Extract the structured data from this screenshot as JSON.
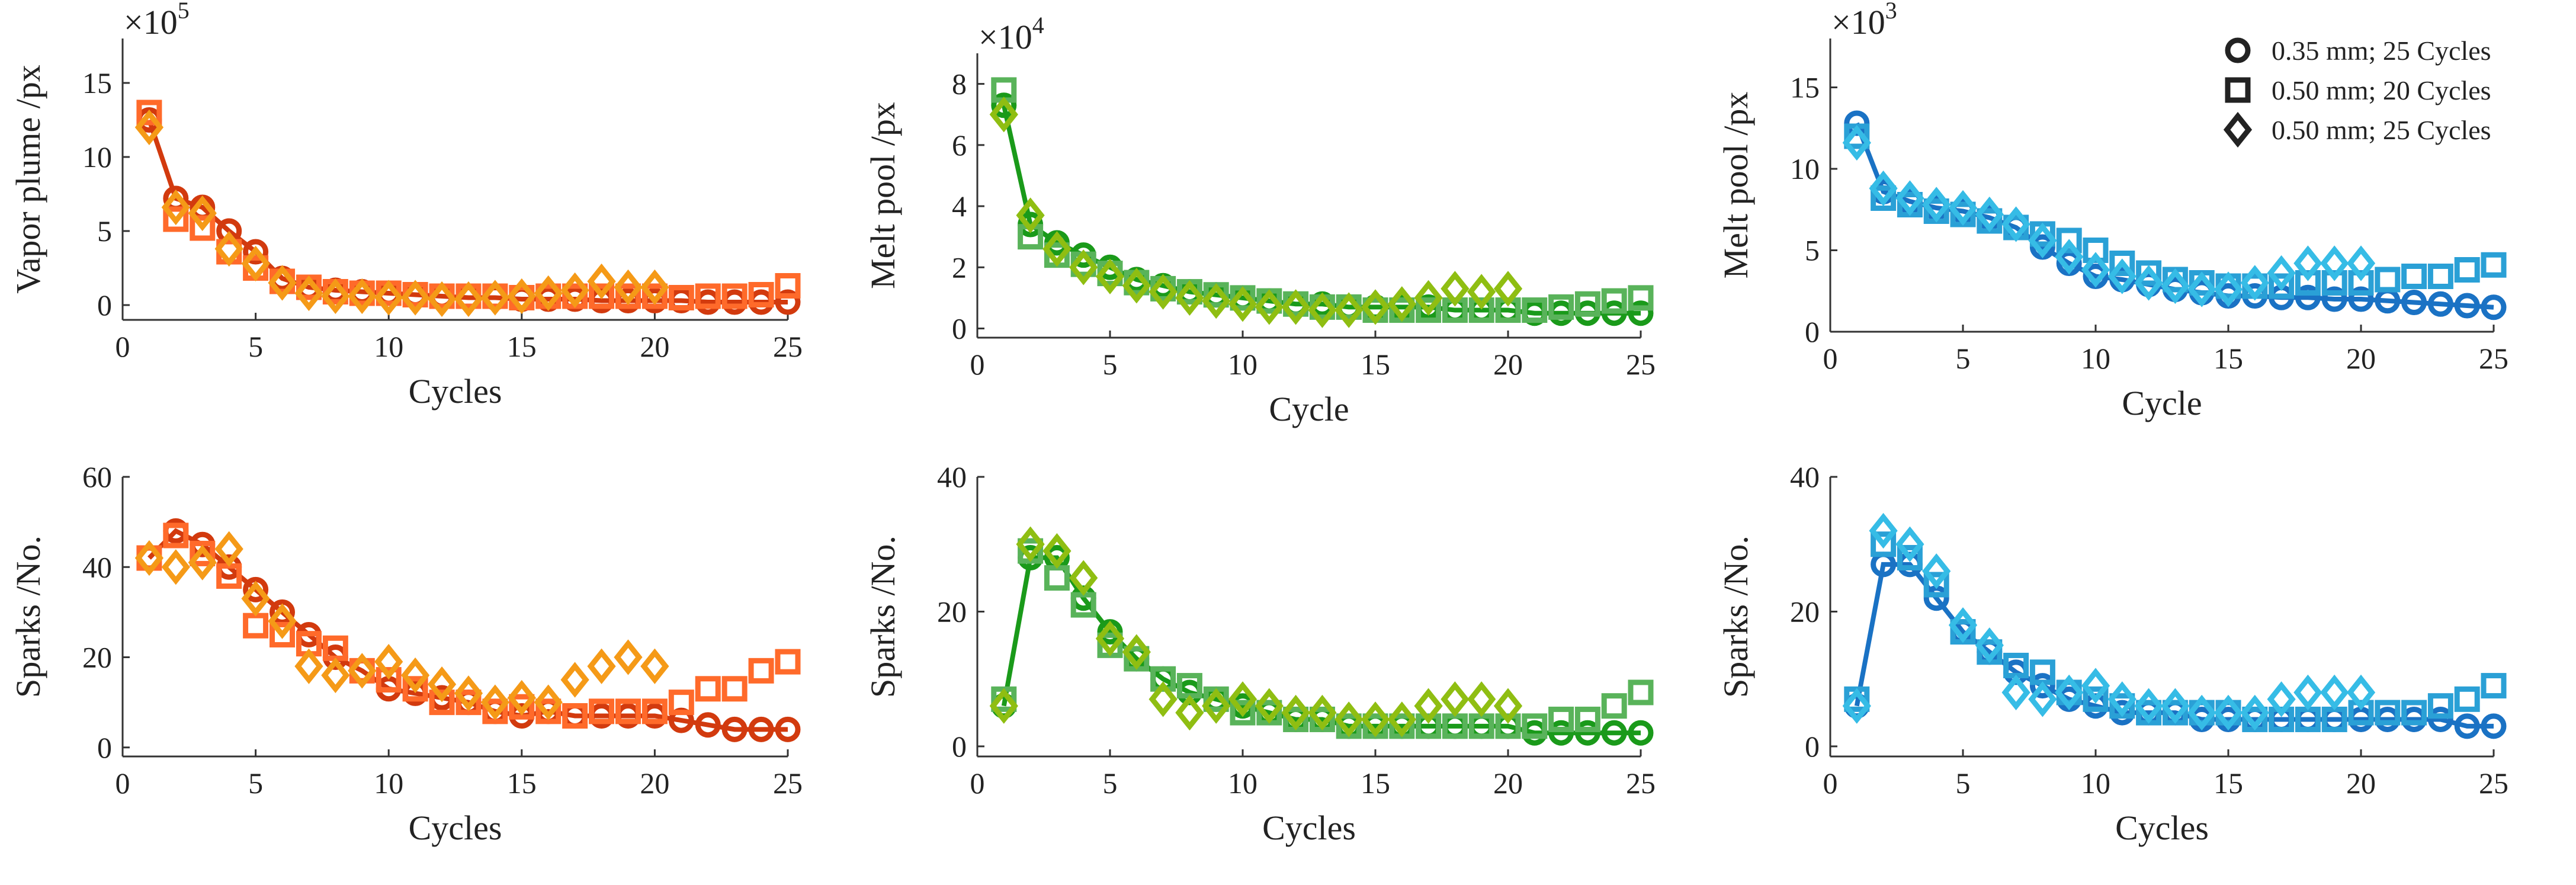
{
  "legend": {
    "items": [
      {
        "marker": "circle",
        "label": "0.35 mm; 25 Cycles"
      },
      {
        "marker": "square",
        "label": "0.50 mm; 20 Cycles"
      },
      {
        "marker": "diamond",
        "label": "0.50 mm; 25 Cycles"
      }
    ]
  },
  "chart_data": [
    {
      "type": "scatter",
      "id": "vapor",
      "xlabel": "Cycles",
      "ylabel": "Vapor plume /px",
      "multiplier_base": "×10",
      "multiplier_exp": "5",
      "xlim": [
        0,
        25
      ],
      "ylim": [
        -1,
        18
      ],
      "xticks": [
        0,
        5,
        10,
        15,
        20,
        25
      ],
      "yticks": [
        0,
        5,
        10,
        15
      ],
      "colors": [
        "#d23a0e",
        "#ff6a2a",
        "#f59a17"
      ],
      "series": [
        {
          "marker": "circle",
          "x": [
            1,
            2,
            3,
            4,
            5,
            6,
            7,
            8,
            9,
            10,
            11,
            12,
            13,
            14,
            15,
            16,
            17,
            18,
            19,
            20,
            21,
            22,
            23,
            24,
            25
          ],
          "y": [
            12.5,
            7.2,
            6.6,
            5.0,
            3.6,
            1.8,
            1.2,
            1.0,
            0.9,
            0.8,
            0.7,
            0.6,
            0.5,
            0.5,
            0.4,
            0.4,
            0.4,
            0.3,
            0.3,
            0.3,
            0.3,
            0.2,
            0.2,
            0.2,
            0.2
          ]
        },
        {
          "marker": "square",
          "x": [
            1,
            2,
            3,
            4,
            5,
            6,
            7,
            8,
            9,
            10,
            11,
            12,
            13,
            14,
            15,
            16,
            17,
            18,
            19,
            20,
            21,
            22,
            23,
            24,
            25
          ],
          "y": [
            13.0,
            5.8,
            5.2,
            3.6,
            2.5,
            1.6,
            1.2,
            0.9,
            0.8,
            0.8,
            0.7,
            0.6,
            0.6,
            0.6,
            0.5,
            0.6,
            0.6,
            0.6,
            0.6,
            0.6,
            0.5,
            0.6,
            0.6,
            0.7,
            1.3
          ]
        },
        {
          "marker": "diamond",
          "x": [
            1,
            2,
            3,
            4,
            5,
            6,
            7,
            8,
            9,
            10,
            11,
            12,
            13,
            14,
            15,
            16,
            17,
            18,
            19,
            20
          ],
          "y": [
            12.0,
            6.6,
            6.2,
            3.8,
            2.8,
            1.5,
            0.8,
            0.6,
            0.6,
            0.5,
            0.5,
            0.4,
            0.4,
            0.5,
            0.6,
            0.8,
            1.0,
            1.6,
            1.2,
            1.2
          ]
        }
      ]
    },
    {
      "type": "scatter",
      "id": "melt-green",
      "xlabel": "Cycle",
      "ylabel": "Melt pool /px",
      "multiplier_base": "×10",
      "multiplier_exp": "4",
      "xlim": [
        0,
        25
      ],
      "ylim": [
        -0.3,
        9
      ],
      "xticks": [
        0,
        5,
        10,
        15,
        20,
        25
      ],
      "yticks": [
        0,
        2,
        4,
        6,
        8
      ],
      "colors": [
        "#1a9a1a",
        "#59b35a",
        "#8fbe12"
      ],
      "series": [
        {
          "marker": "circle",
          "x": [
            1,
            2,
            3,
            4,
            5,
            6,
            7,
            8,
            9,
            10,
            11,
            12,
            13,
            14,
            15,
            16,
            17,
            18,
            19,
            20,
            21,
            22,
            23,
            24,
            25
          ],
          "y": [
            7.3,
            3.4,
            2.8,
            2.4,
            2.0,
            1.6,
            1.4,
            1.2,
            1.1,
            1.0,
            0.9,
            0.8,
            0.8,
            0.7,
            0.7,
            0.7,
            0.7,
            0.6,
            0.6,
            0.6,
            0.5,
            0.5,
            0.5,
            0.5,
            0.5
          ]
        },
        {
          "marker": "square",
          "x": [
            1,
            2,
            3,
            4,
            5,
            6,
            7,
            8,
            9,
            10,
            11,
            12,
            13,
            14,
            15,
            16,
            17,
            18,
            19,
            20,
            21,
            22,
            23,
            24,
            25
          ],
          "y": [
            7.8,
            3.0,
            2.4,
            2.1,
            1.8,
            1.5,
            1.3,
            1.2,
            1.1,
            1.0,
            0.9,
            0.8,
            0.7,
            0.7,
            0.6,
            0.6,
            0.6,
            0.6,
            0.6,
            0.6,
            0.6,
            0.7,
            0.8,
            0.9,
            1.0
          ]
        },
        {
          "marker": "diamond",
          "x": [
            1,
            2,
            3,
            4,
            5,
            6,
            7,
            8,
            9,
            10,
            11,
            12,
            13,
            14,
            15,
            16,
            17,
            18,
            19,
            20
          ],
          "y": [
            7.0,
            3.7,
            2.6,
            2.0,
            1.7,
            1.4,
            1.2,
            1.0,
            0.9,
            0.8,
            0.7,
            0.7,
            0.6,
            0.6,
            0.7,
            0.8,
            1.0,
            1.3,
            1.2,
            1.3
          ]
        }
      ]
    },
    {
      "type": "scatter",
      "id": "melt-blue",
      "xlabel": "Cycle",
      "ylabel": "Melt pool /px",
      "multiplier_base": "×10",
      "multiplier_exp": "3",
      "xlim": [
        0,
        25
      ],
      "ylim": [
        0,
        18
      ],
      "xticks": [
        0,
        5,
        10,
        15,
        20,
        25
      ],
      "yticks": [
        0,
        5,
        10,
        15
      ],
      "colors": [
        "#1a72c4",
        "#2aa0d6",
        "#36bce6"
      ],
      "series": [
        {
          "marker": "circle",
          "x": [
            1,
            2,
            3,
            4,
            5,
            6,
            7,
            8,
            9,
            10,
            11,
            12,
            13,
            14,
            15,
            16,
            17,
            18,
            19,
            20,
            21,
            22,
            23,
            24,
            25
          ],
          "y": [
            12.8,
            8.6,
            8.0,
            7.6,
            7.4,
            7.0,
            6.4,
            5.2,
            4.2,
            3.4,
            3.2,
            2.9,
            2.6,
            2.4,
            2.2,
            2.2,
            2.1,
            2.1,
            2.0,
            2.0,
            1.9,
            1.8,
            1.7,
            1.6,
            1.5
          ]
        },
        {
          "marker": "square",
          "x": [
            1,
            2,
            3,
            4,
            5,
            6,
            7,
            8,
            9,
            10,
            11,
            12,
            13,
            14,
            15,
            16,
            17,
            18,
            19,
            20,
            21,
            22,
            23,
            24,
            25
          ],
          "y": [
            12.0,
            8.2,
            7.8,
            7.4,
            7.2,
            6.8,
            6.4,
            6.0,
            5.6,
            5.0,
            4.2,
            3.6,
            3.2,
            3.0,
            2.8,
            2.8,
            2.8,
            3.0,
            3.0,
            3.0,
            3.2,
            3.4,
            3.4,
            3.8,
            4.1
          ]
        },
        {
          "marker": "diamond",
          "x": [
            1,
            2,
            3,
            4,
            5,
            6,
            7,
            8,
            9,
            10,
            11,
            12,
            13,
            14,
            15,
            16,
            17,
            18,
            19,
            20
          ],
          "y": [
            11.6,
            8.8,
            8.2,
            7.8,
            7.6,
            7.2,
            6.6,
            5.6,
            4.6,
            3.8,
            3.4,
            3.0,
            2.8,
            2.6,
            2.6,
            3.0,
            3.6,
            4.2,
            4.2,
            4.2
          ]
        }
      ]
    },
    {
      "type": "scatter",
      "id": "sparks-red",
      "xlabel": "Cycles",
      "ylabel": "Sparks /No.",
      "xlim": [
        0,
        25
      ],
      "ylim": [
        -2,
        60
      ],
      "xticks": [
        0,
        5,
        10,
        15,
        20,
        25
      ],
      "yticks": [
        0,
        20,
        40,
        60
      ],
      "colors": [
        "#d23a0e",
        "#ff6a2a",
        "#f59a17"
      ],
      "series": [
        {
          "marker": "circle",
          "x": [
            1,
            2,
            3,
            4,
            5,
            6,
            7,
            8,
            9,
            10,
            11,
            12,
            13,
            14,
            15,
            16,
            17,
            18,
            19,
            20,
            21,
            22,
            23,
            24,
            25
          ],
          "y": [
            42,
            48,
            45,
            40,
            35,
            30,
            25,
            20,
            17,
            13,
            12,
            11,
            10,
            8,
            7,
            8,
            7,
            7,
            7,
            7,
            6,
            5,
            4,
            4,
            4
          ]
        },
        {
          "marker": "square",
          "x": [
            1,
            2,
            3,
            4,
            5,
            6,
            7,
            8,
            9,
            10,
            11,
            12,
            13,
            14,
            15,
            16,
            17,
            18,
            19,
            20,
            21,
            22,
            23,
            24,
            25
          ],
          "y": [
            42,
            47,
            43,
            38,
            27,
            25,
            23,
            22,
            17,
            15,
            13,
            10,
            10,
            8,
            9,
            8,
            7,
            8,
            8,
            8,
            10,
            13,
            13,
            17,
            19
          ]
        },
        {
          "marker": "diamond",
          "x": [
            1,
            2,
            3,
            4,
            5,
            6,
            7,
            8,
            9,
            10,
            11,
            12,
            13,
            14,
            15,
            16,
            17,
            18,
            19,
            20
          ],
          "y": [
            42,
            40,
            41,
            44,
            33,
            28,
            18,
            16,
            17,
            19,
            16,
            14,
            12,
            10,
            11,
            10,
            15,
            18,
            20,
            18
          ]
        }
      ]
    },
    {
      "type": "scatter",
      "id": "sparks-green",
      "xlabel": "Cycles",
      "ylabel": "Sparks /No.",
      "xlim": [
        0,
        25
      ],
      "ylim": [
        -1.5,
        40
      ],
      "xticks": [
        0,
        5,
        10,
        15,
        20,
        25
      ],
      "yticks": [
        0,
        20,
        40
      ],
      "colors": [
        "#1a9a1a",
        "#59b35a",
        "#8fbe12"
      ],
      "series": [
        {
          "marker": "circle",
          "x": [
            1,
            2,
            3,
            4,
            5,
            6,
            7,
            8,
            9,
            10,
            11,
            12,
            13,
            14,
            15,
            16,
            17,
            18,
            19,
            20,
            21,
            22,
            23,
            24,
            25
          ],
          "y": [
            6,
            28,
            28,
            22,
            17,
            13,
            10,
            8,
            7,
            6,
            5,
            4,
            4,
            3,
            3,
            3,
            3,
            3,
            3,
            3,
            2,
            2,
            2,
            2,
            2
          ]
        },
        {
          "marker": "square",
          "x": [
            1,
            2,
            3,
            4,
            5,
            6,
            7,
            8,
            9,
            10,
            11,
            12,
            13,
            14,
            15,
            16,
            17,
            18,
            19,
            20,
            21,
            22,
            23,
            24,
            25
          ],
          "y": [
            7,
            29,
            25,
            21,
            15,
            13,
            10,
            9,
            7,
            5,
            5,
            4,
            4,
            3,
            3,
            3,
            3,
            3,
            3,
            3,
            3,
            4,
            4,
            6,
            8
          ]
        },
        {
          "marker": "diamond",
          "x": [
            1,
            2,
            3,
            4,
            5,
            6,
            7,
            8,
            9,
            10,
            11,
            12,
            13,
            14,
            15,
            16,
            17,
            18,
            19,
            20
          ],
          "y": [
            6,
            30,
            29,
            25,
            16,
            14,
            7,
            5,
            6,
            7,
            6,
            5,
            5,
            4,
            4,
            4,
            6,
            7,
            7,
            6
          ]
        }
      ]
    },
    {
      "type": "scatter",
      "id": "sparks-blue",
      "xlabel": "Cycles",
      "ylabel": "Sparks /No.",
      "xlim": [
        0,
        25
      ],
      "ylim": [
        -1.5,
        40
      ],
      "xticks": [
        0,
        5,
        10,
        15,
        20,
        25
      ],
      "yticks": [
        0,
        20,
        40
      ],
      "colors": [
        "#1a72c4",
        "#2aa0d6",
        "#36bce6"
      ],
      "series": [
        {
          "marker": "circle",
          "x": [
            1,
            2,
            3,
            4,
            5,
            6,
            7,
            8,
            9,
            10,
            11,
            12,
            13,
            14,
            15,
            16,
            17,
            18,
            19,
            20,
            21,
            22,
            23,
            24,
            25
          ],
          "y": [
            6,
            27,
            27,
            22,
            17,
            14,
            11,
            9,
            7,
            6,
            5,
            5,
            5,
            4,
            4,
            4,
            4,
            4,
            4,
            4,
            4,
            4,
            4,
            3,
            3
          ]
        },
        {
          "marker": "square",
          "x": [
            1,
            2,
            3,
            4,
            5,
            6,
            7,
            8,
            9,
            10,
            11,
            12,
            13,
            14,
            15,
            16,
            17,
            18,
            19,
            20,
            21,
            22,
            23,
            24,
            25
          ],
          "y": [
            7,
            30,
            28,
            24,
            17,
            14,
            12,
            11,
            8,
            7,
            6,
            5,
            5,
            5,
            5,
            4,
            4,
            4,
            4,
            5,
            5,
            5,
            6,
            7,
            9
          ]
        },
        {
          "marker": "diamond",
          "x": [
            1,
            2,
            3,
            4,
            5,
            6,
            7,
            8,
            9,
            10,
            11,
            12,
            13,
            14,
            15,
            16,
            17,
            18,
            19,
            20
          ],
          "y": [
            6,
            32,
            30,
            26,
            18,
            15,
            8,
            7,
            8,
            9,
            7,
            6,
            6,
            5,
            5,
            5,
            7,
            8,
            8,
            8
          ]
        }
      ]
    }
  ]
}
